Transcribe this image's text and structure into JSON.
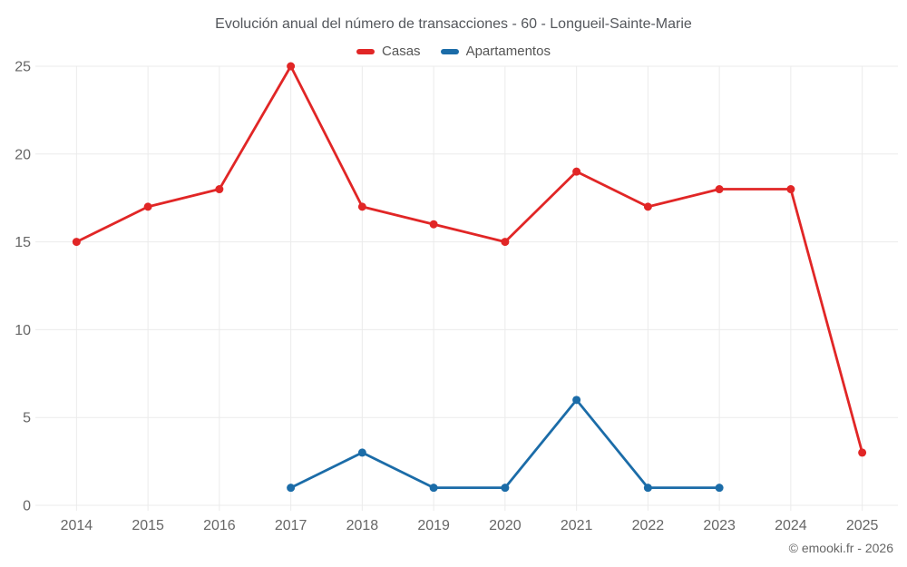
{
  "page": {
    "title": "Evolución anual del número de transacciones - 60 - Longueil-Sainte-Marie",
    "attribution": "© emooki.fr - 2026"
  },
  "legend": {
    "items": [
      {
        "label": "Casas",
        "color": "#e12626"
      },
      {
        "label": "Apartamentos",
        "color": "#1b6ca8"
      }
    ]
  },
  "chart_data": {
    "type": "line",
    "title": "Evolución anual del número de transacciones - 60 - Longueil-Sainte-Marie",
    "categories": [
      "2014",
      "2015",
      "2016",
      "2017",
      "2018",
      "2019",
      "2020",
      "2021",
      "2022",
      "2023",
      "2024",
      "2025"
    ],
    "series": [
      {
        "name": "Casas",
        "color": "#e12626",
        "values": [
          15,
          17,
          18,
          25,
          17,
          16,
          15,
          19,
          17,
          18,
          18,
          3
        ]
      },
      {
        "name": "Apartamentos",
        "color": "#1b6ca8",
        "values": [
          null,
          null,
          null,
          1,
          3,
          1,
          1,
          6,
          1,
          1,
          null,
          null
        ]
      }
    ],
    "xlabel": "",
    "ylabel": "",
    "ylim": [
      0,
      25
    ],
    "yticks": [
      0,
      5,
      10,
      15,
      20,
      25
    ],
    "grid": true,
    "legend_position": "top",
    "grid_color": "#ebebeb",
    "tick_color": "#666666"
  }
}
